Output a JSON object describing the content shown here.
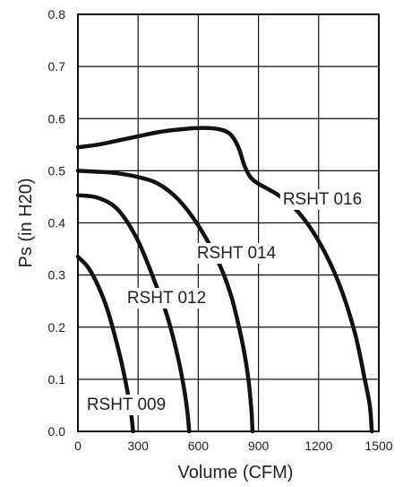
{
  "chart_data": {
    "type": "line",
    "xlabel": "Volume (CFM)",
    "ylabel": "Ps (in H20)",
    "xlim": [
      0,
      1500
    ],
    "ylim": [
      0,
      0.8
    ],
    "grid": true,
    "legend": "none",
    "x_ticks": [
      0,
      300,
      600,
      900,
      1200,
      1500
    ],
    "x_tick_labels": [
      "0",
      "300",
      "600",
      "900",
      "1200",
      "1500"
    ],
    "y_ticks": [
      0.0,
      0.1,
      0.2,
      0.3,
      0.4,
      0.5,
      0.6,
      0.7,
      0.8
    ],
    "y_tick_labels": [
      "0.0",
      "0.1",
      "0.2",
      "0.3",
      "0.4",
      "0.5",
      "0.6",
      "0.7",
      "0.8"
    ],
    "colors": {
      "curve": "#111111",
      "grid": "#111111",
      "frame": "#111111",
      "text": "#222222"
    },
    "series": [
      {
        "name": "RSHT 009",
        "label_at": [
          0.275,
          0.07
        ],
        "points": [
          [
            0,
            0.335
          ],
          [
            50,
            0.315
          ],
          [
            100,
            0.28
          ],
          [
            150,
            0.23
          ],
          [
            200,
            0.16
          ],
          [
            230,
            0.11
          ],
          [
            250,
            0.07
          ],
          [
            265,
            0.035
          ],
          [
            275,
            0.0
          ]
        ]
      },
      {
        "name": "RSHT 012",
        "label_at": [
          0.39,
          0.355
        ],
        "points": [
          [
            0,
            0.453
          ],
          [
            100,
            0.448
          ],
          [
            200,
            0.425
          ],
          [
            300,
            0.365
          ],
          [
            400,
            0.27
          ],
          [
            450,
            0.215
          ],
          [
            500,
            0.14
          ],
          [
            530,
            0.08
          ],
          [
            545,
            0.04
          ],
          [
            555,
            0.0
          ]
        ]
      },
      {
        "name": "RSHT 014",
        "label_at": [
          0.6,
          0.545
        ],
        "points": [
          [
            0,
            0.5
          ],
          [
            100,
            0.498
          ],
          [
            200,
            0.495
          ],
          [
            300,
            0.488
          ],
          [
            400,
            0.475
          ],
          [
            500,
            0.445
          ],
          [
            600,
            0.395
          ],
          [
            700,
            0.325
          ],
          [
            760,
            0.265
          ],
          [
            800,
            0.205
          ],
          [
            830,
            0.15
          ],
          [
            850,
            0.1
          ],
          [
            865,
            0.04
          ],
          [
            870,
            0.0
          ]
        ]
      },
      {
        "name": "RSHT 016",
        "label_at": [
          0.82,
          0.94
        ],
        "points": [
          [
            0,
            0.545
          ],
          [
            100,
            0.55
          ],
          [
            200,
            0.558
          ],
          [
            300,
            0.566
          ],
          [
            400,
            0.574
          ],
          [
            500,
            0.579
          ],
          [
            600,
            0.582
          ],
          [
            700,
            0.58
          ],
          [
            760,
            0.57
          ],
          [
            800,
            0.545
          ],
          [
            830,
            0.51
          ],
          [
            860,
            0.488
          ],
          [
            900,
            0.475
          ],
          [
            1000,
            0.453
          ],
          [
            1100,
            0.42
          ],
          [
            1200,
            0.365
          ],
          [
            1300,
            0.285
          ],
          [
            1380,
            0.19
          ],
          [
            1430,
            0.1
          ],
          [
            1455,
            0.05
          ],
          [
            1465,
            0.0
          ]
        ]
      }
    ]
  }
}
